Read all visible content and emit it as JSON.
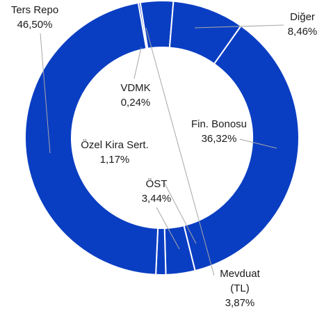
{
  "chart_data": {
    "type": "donut",
    "categories": [
      "VDMK",
      "Mevduat (TL)",
      "Diğer",
      "Fin. Bonosu",
      "ÖST",
      "Özel Kira Sert.",
      "Ters Repo"
    ],
    "values": [
      0.24,
      3.87,
      8.46,
      36.32,
      3.44,
      1.17,
      46.5
    ],
    "value_labels": [
      "0,24%",
      "3,87%",
      "8,46%",
      "36,32%",
      "3,44%",
      "1,17%",
      "46,50%"
    ],
    "color": "#0a3ec2"
  }
}
